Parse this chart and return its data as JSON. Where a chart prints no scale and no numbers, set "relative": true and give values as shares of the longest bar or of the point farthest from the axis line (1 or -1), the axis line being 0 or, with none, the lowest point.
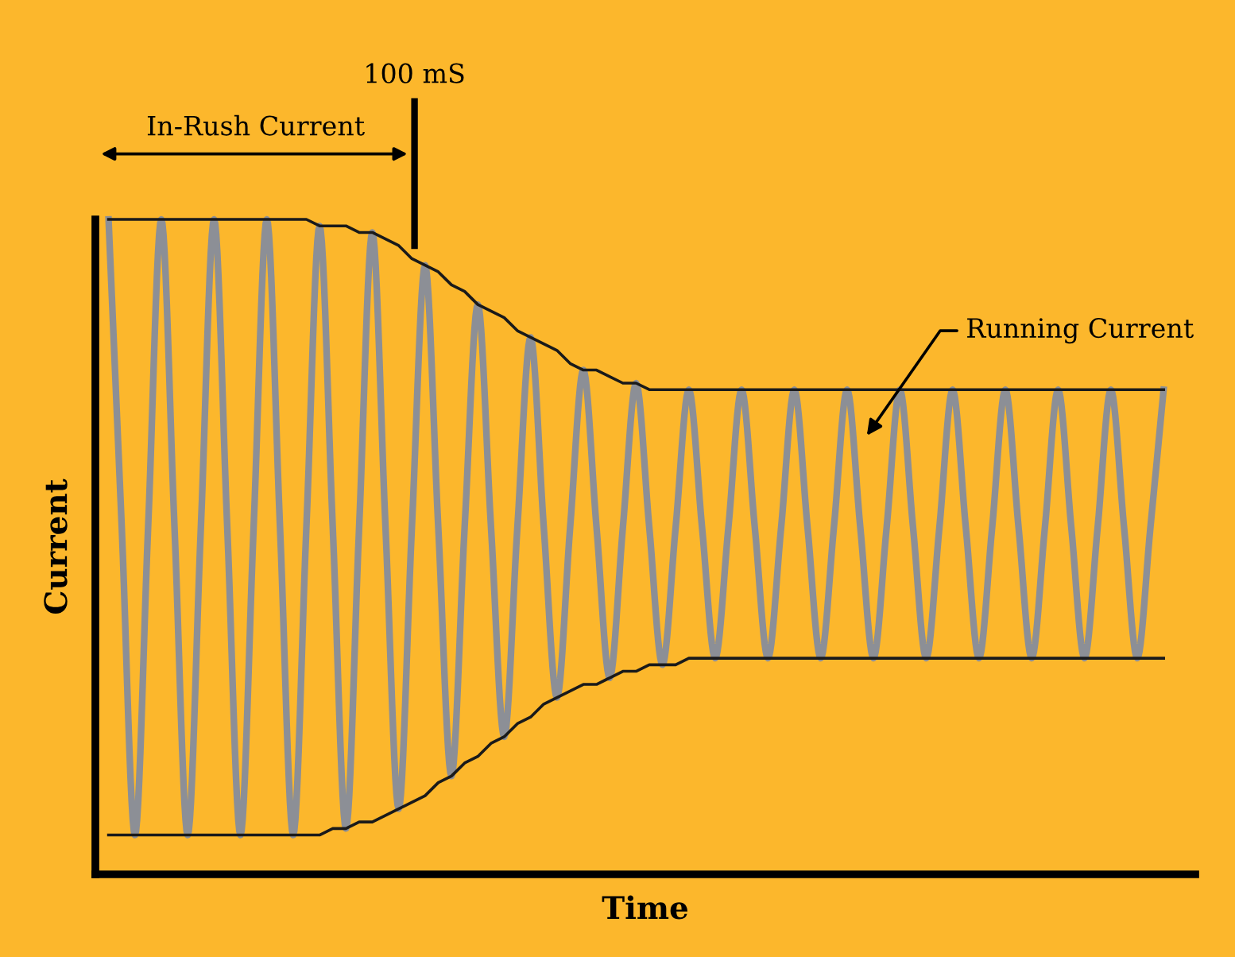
{
  "chart_data": {
    "type": "line",
    "relative": true,
    "xlabel": "Time",
    "ylabel": "Current",
    "grid": false,
    "categories": [
      null,
      null,
      null,
      null,
      null,
      null,
      null,
      null,
      null,
      null,
      null,
      null,
      null,
      null,
      null,
      null,
      null,
      null,
      null,
      null,
      null,
      null,
      null,
      null,
      null,
      null,
      null,
      null,
      null,
      null,
      null,
      null,
      null,
      null,
      null,
      null,
      null,
      null,
      null,
      null,
      null,
      null,
      null,
      null,
      null,
      null,
      null,
      null,
      null,
      null,
      null,
      null,
      null,
      null,
      null,
      null,
      null,
      null,
      null,
      null,
      null,
      null,
      null,
      null,
      null,
      null,
      null,
      null,
      null,
      null,
      null,
      null,
      null,
      null,
      null,
      null,
      null,
      null,
      null,
      null,
      null
    ],
    "series": [
      {
        "color": "#8c8f96",
        "values": [
          1.0,
          0.53,
          0.06,
          0.53,
          1.0,
          0.53,
          0.06,
          0.53,
          1.0,
          0.53,
          0.06,
          0.53,
          1.0,
          0.53,
          0.06,
          0.53,
          0.99,
          0.53,
          0.07,
          0.53,
          0.98,
          0.53,
          0.1,
          0.53,
          0.93,
          0.53,
          0.15,
          0.53,
          0.87,
          0.53,
          0.21,
          0.53,
          0.82,
          0.53,
          0.27,
          0.53,
          0.77,
          0.53,
          0.3,
          0.53,
          0.75,
          0.53,
          0.32,
          0.53,
          0.74,
          0.53,
          0.33,
          0.53,
          0.74,
          0.53,
          0.33,
          0.53,
          0.74,
          0.53,
          0.33,
          0.53,
          0.74,
          0.53,
          0.33,
          0.53,
          0.74,
          0.53,
          0.33,
          0.53,
          0.74,
          0.53,
          0.33,
          0.53,
          0.74,
          0.53,
          0.33,
          0.53,
          0.74,
          0.53,
          0.33,
          0.53,
          0.74,
          0.53,
          0.33,
          0.53,
          0.74
        ]
      },
      {
        "color": "#1a1a1a",
        "values": [
          1.0,
          1.0,
          1.0,
          1.0,
          1.0,
          1.0,
          1.0,
          1.0,
          1.0,
          1.0,
          1.0,
          1.0,
          1.0,
          1.0,
          1.0,
          1.0,
          0.99,
          0.99,
          0.99,
          0.98,
          0.98,
          0.97,
          0.96,
          0.94,
          0.93,
          0.92,
          0.9,
          0.89,
          0.87,
          0.86,
          0.85,
          0.83,
          0.82,
          0.81,
          0.8,
          0.78,
          0.77,
          0.77,
          0.76,
          0.75,
          0.75,
          0.74,
          0.74,
          0.74,
          0.74,
          0.74,
          0.74,
          0.74,
          0.74,
          0.74,
          0.74,
          0.74,
          0.74,
          0.74,
          0.74,
          0.74,
          0.74,
          0.74,
          0.74,
          0.74,
          0.74,
          0.74,
          0.74,
          0.74,
          0.74,
          0.74,
          0.74,
          0.74,
          0.74,
          0.74,
          0.74,
          0.74,
          0.74,
          0.74,
          0.74,
          0.74,
          0.74,
          0.74,
          0.74,
          0.74,
          0.74
        ]
      },
      {
        "color": "#1a1a1a",
        "values": [
          0.06,
          0.06,
          0.06,
          0.06,
          0.06,
          0.06,
          0.06,
          0.06,
          0.06,
          0.06,
          0.06,
          0.06,
          0.06,
          0.06,
          0.06,
          0.06,
          0.06,
          0.07,
          0.07,
          0.08,
          0.08,
          0.09,
          0.1,
          0.11,
          0.12,
          0.14,
          0.15,
          0.17,
          0.18,
          0.2,
          0.21,
          0.23,
          0.24,
          0.26,
          0.27,
          0.28,
          0.29,
          0.29,
          0.3,
          0.31,
          0.31,
          0.32,
          0.32,
          0.32,
          0.33,
          0.33,
          0.33,
          0.33,
          0.33,
          0.33,
          0.33,
          0.33,
          0.33,
          0.33,
          0.33,
          0.33,
          0.33,
          0.33,
          0.33,
          0.33,
          0.33,
          0.33,
          0.33,
          0.33,
          0.33,
          0.33,
          0.33,
          0.33,
          0.33,
          0.33,
          0.33,
          0.33,
          0.33,
          0.33,
          0.33,
          0.33,
          0.33,
          0.33,
          0.33,
          0.33,
          0.33
        ]
      }
    ],
    "annotations": [
      "100 mS",
      "In-Rush Current",
      "Running Current"
    ]
  }
}
